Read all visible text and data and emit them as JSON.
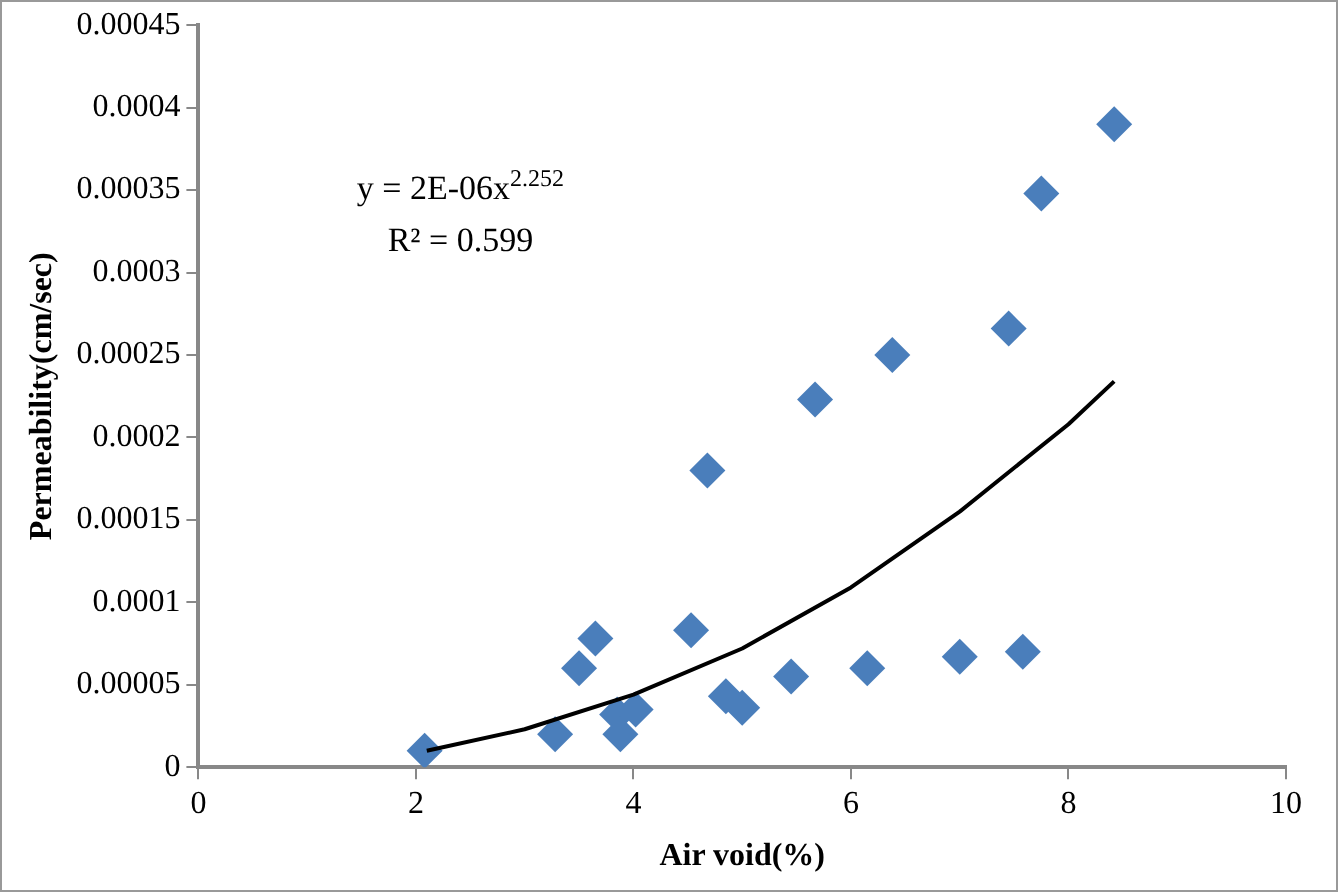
{
  "chart_data": {
    "type": "scatter",
    "xlabel": "Air void(%)",
    "ylabel": "Permeability(cm/sec)",
    "annotations": [
      "y = 2E-06x$^{2.252}$",
      "R² = 0.599"
    ],
    "xlim": [
      0,
      10
    ],
    "xticks": [
      0,
      2,
      4,
      6,
      8,
      10
    ],
    "ylim": [
      0,
      0.00045
    ],
    "yticks": [
      0,
      {
        "value": 5e-05,
        "label": "0.00005"
      },
      {
        "value": 0.0001,
        "label": "0.0001"
      },
      {
        "value": 0.00015,
        "label": "0.00015"
      },
      {
        "value": 0.0002,
        "label": "0.0002"
      },
      {
        "value": 0.00025,
        "label": "0.00025"
      },
      {
        "value": 0.0003,
        "label": "0.0003"
      },
      {
        "value": 0.00035,
        "label": "0.00035"
      },
      {
        "value": 0.0004,
        "label": "0.0004"
      },
      {
        "value": 0.00045,
        "label": "0.00045"
      }
    ],
    "grid": false,
    "legend": false,
    "marker": "diamond",
    "series": [
      {
        "color": "#4a7ebb",
        "x": [
          2.08,
          3.28,
          3.5,
          3.65,
          3.85,
          3.88,
          4.02,
          4.53,
          4.68,
          4.85,
          5.0,
          5.45,
          5.67,
          6.15,
          6.38,
          7.0,
          7.45,
          7.58,
          7.75,
          8.42
        ],
        "values": [
          1e-05,
          2e-05,
          6e-05,
          7.8e-05,
          3.2e-05,
          2e-05,
          3.5e-05,
          8.3e-05,
          0.00018,
          4.3e-05,
          3.6e-05,
          5.5e-05,
          0.000223,
          6e-05,
          0.00025,
          6.7e-05,
          0.000266,
          7e-05,
          0.000348,
          0.00039
        ]
      },
      {
        "type": "line",
        "color": "#000000",
        "marker": "none",
        "line_style": "solid",
        "x": [
          2.1,
          3,
          4,
          5,
          6,
          7,
          8,
          8.42
        ],
        "values": [
          1e-05,
          2.3e-05,
          4.4e-05,
          7.2e-05,
          0.000109,
          0.000155,
          0.000208,
          0.000234
        ]
      }
    ]
  }
}
